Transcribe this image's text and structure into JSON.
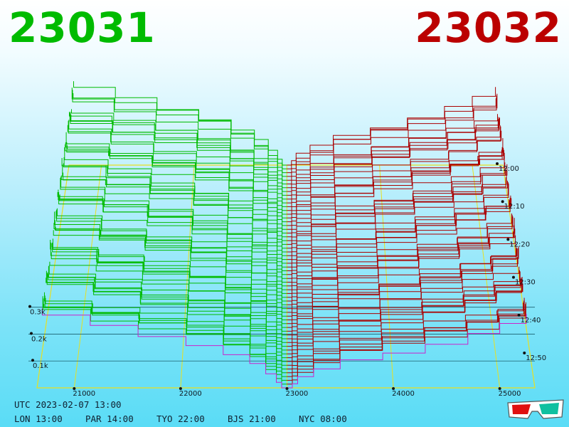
{
  "header": {
    "bid_price": "23031",
    "ask_price": "23032",
    "bid_color": "#00bb00",
    "ask_color": "#bb0000"
  },
  "footer": {
    "utc": "UTC 2023-02-07 13:00",
    "zones": [
      "LON 13:00",
      "PAR 14:00",
      "TYO 22:00",
      "BJS 21:00",
      "NYC 08:00"
    ]
  },
  "glasses_icon": "3d-glasses-icon",
  "chart_data": {
    "type": "area",
    "price_axis": {
      "ticks": [
        21000,
        22000,
        23000,
        24000,
        25000
      ],
      "labels": [
        "21000",
        "22000",
        "23000",
        "24000",
        "25000"
      ],
      "range": [
        20650,
        25330
      ]
    },
    "volume_axis": {
      "ticks": [
        0.1,
        0.2,
        0.3
      ],
      "labels": [
        "0.1k",
        "0.2k",
        "0.3k"
      ],
      "max": 0.45
    },
    "time_axis": {
      "labels": [
        "12:00",
        "12:10",
        "12:20",
        "12:30",
        "12:40",
        "12:50"
      ],
      "snapshots": 60
    },
    "series": [
      {
        "side": "bid",
        "color": "#00bb00",
        "x": [
          23000,
          22950,
          22900,
          22800,
          22650,
          22400,
          22050,
          21600,
          21150,
          20700
        ],
        "depth": [
          0.004,
          0.02,
          0.05,
          0.09,
          0.13,
          0.17,
          0.2,
          0.23,
          0.26,
          0.29
        ]
      },
      {
        "side": "ask",
        "color": "#aa0000",
        "x": [
          23000,
          23050,
          23100,
          23250,
          23500,
          23900,
          24300,
          24700,
          25000,
          25250
        ],
        "depth": [
          0.004,
          0.015,
          0.04,
          0.07,
          0.11,
          0.14,
          0.17,
          0.2,
          0.23,
          0.27
        ]
      }
    ],
    "grid": true
  }
}
